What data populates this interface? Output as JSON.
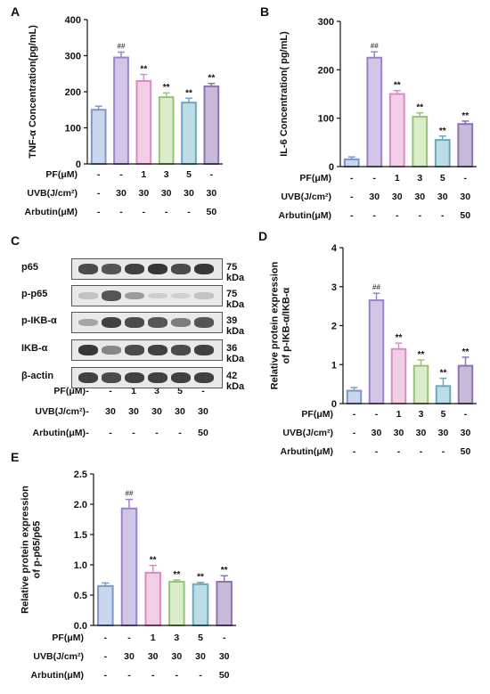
{
  "panels": [
    {
      "letter": "A",
      "ylabel": "TNF-α Concentration(pg/mL)",
      "yticks": [
        0,
        100,
        200,
        300,
        400
      ],
      "ylim": [
        0,
        400
      ],
      "colors": [
        "#c9d6ee",
        "#d2c6e8",
        "#f2cde6",
        "#dbecc9",
        "#bcdde6",
        "#c7bad8"
      ],
      "edges": [
        "#7e97c7",
        "#9a83c6",
        "#d98bc2",
        "#98c27a",
        "#6aa9be",
        "#8c74b0"
      ],
      "values": [
        150,
        295,
        230,
        185,
        170,
        215
      ],
      "errors": [
        10,
        15,
        18,
        12,
        12,
        8
      ],
      "marks": [
        "",
        "##",
        "**",
        "**",
        "**",
        "**"
      ],
      "rows": [
        {
          "label": "PF(μM)",
          "cells": [
            "-",
            "-",
            "1",
            "3",
            "5",
            "-"
          ]
        },
        {
          "label": "UVB(J/cm²)",
          "cells": [
            "-",
            "30",
            "30",
            "30",
            "30",
            "30"
          ]
        },
        {
          "label": "Arbutin(μM)",
          "cells": [
            "-",
            "-",
            "-",
            "-",
            "-",
            "50"
          ]
        }
      ]
    },
    {
      "letter": "B",
      "ylabel": "IL-6 Concentration( pg/mL)",
      "yticks": [
        0,
        100,
        200,
        300
      ],
      "ylim": [
        0,
        300
      ],
      "colors": [
        "#c9d6ee",
        "#d2c6e8",
        "#f2cde6",
        "#dbecc9",
        "#bcdde6",
        "#c7bad8"
      ],
      "edges": [
        "#7e97c7",
        "#9a83c6",
        "#d98bc2",
        "#98c27a",
        "#6aa9be",
        "#8c74b0"
      ],
      "values": [
        15,
        225,
        150,
        103,
        55,
        88
      ],
      "errors": [
        5,
        12,
        7,
        8,
        8,
        6
      ],
      "marks": [
        "",
        "##",
        "**",
        "**",
        "**",
        "**"
      ],
      "rows": [
        {
          "label": "PF(μM)",
          "cells": [
            "-",
            "-",
            "1",
            "3",
            "5",
            "-"
          ]
        },
        {
          "label": "UVB(J/cm²)",
          "cells": [
            "-",
            "30",
            "30",
            "30",
            "30",
            "30"
          ]
        },
        {
          "label": "Arbutin(μM)",
          "cells": [
            "-",
            "-",
            "-",
            "-",
            "-",
            "50"
          ]
        }
      ]
    },
    {
      "letter": "D",
      "ylabel": "Relative protein expression\nof p-IKB-α/IKB-α",
      "yticks": [
        0,
        1,
        2,
        3,
        4
      ],
      "ylim": [
        0,
        4
      ],
      "colors": [
        "#c9d6ee",
        "#d2c6e8",
        "#f2cde6",
        "#dbecc9",
        "#bcdde6",
        "#c7bad8"
      ],
      "edges": [
        "#7e97c7",
        "#9a83c6",
        "#d98bc2",
        "#98c27a",
        "#6aa9be",
        "#8c74b0"
      ],
      "values": [
        0.33,
        2.65,
        1.4,
        0.97,
        0.45,
        0.97
      ],
      "errors": [
        0.08,
        0.18,
        0.15,
        0.15,
        0.2,
        0.22
      ],
      "marks": [
        "",
        "##",
        "**",
        "**",
        "**",
        "**"
      ],
      "rows": [
        {
          "label": "PF(μM)",
          "cells": [
            "-",
            "-",
            "1",
            "3",
            "5",
            "-"
          ]
        },
        {
          "label": "UVB(J/cm²)",
          "cells": [
            "-",
            "30",
            "30",
            "30",
            "30",
            "30"
          ]
        },
        {
          "label": "Arbutin(μM)",
          "cells": [
            "-",
            "-",
            "-",
            "-",
            "-",
            "50"
          ]
        }
      ]
    },
    {
      "letter": "E",
      "ylabel": "Relative protein expression\nof p-p65/p65",
      "yticks": [
        0.0,
        0.5,
        1.0,
        1.5,
        2.0,
        2.5
      ],
      "ytick_labels": [
        "0.0",
        "0.5",
        "1.0",
        "1.5",
        "2.0",
        "2.5"
      ],
      "ylim": [
        0,
        2.5
      ],
      "colors": [
        "#c9d6ee",
        "#d2c6e8",
        "#f2cde6",
        "#dbecc9",
        "#bcdde6",
        "#c7bad8"
      ],
      "edges": [
        "#7e97c7",
        "#9a83c6",
        "#d98bc2",
        "#98c27a",
        "#6aa9be",
        "#8c74b0"
      ],
      "values": [
        0.65,
        1.93,
        0.87,
        0.72,
        0.68,
        0.72
      ],
      "errors": [
        0.05,
        0.15,
        0.12,
        0.03,
        0.03,
        0.1
      ],
      "marks": [
        "",
        "##",
        "**",
        "**",
        "**",
        "**"
      ],
      "rows": [
        {
          "label": "PF(μM)",
          "cells": [
            "-",
            "-",
            "1",
            "3",
            "5",
            "-"
          ]
        },
        {
          "label": "UVB(J/cm²)",
          "cells": [
            "-",
            "30",
            "30",
            "30",
            "30",
            "30"
          ]
        },
        {
          "label": "Arbutin(μM)",
          "cells": [
            "-",
            "-",
            "-",
            "-",
            "-",
            "50"
          ]
        }
      ]
    }
  ],
  "blot": {
    "letter": "C",
    "rows": [
      {
        "protein": "p65",
        "kda": "75 kDa",
        "intensity": [
          0.75,
          0.7,
          0.8,
          0.85,
          0.75,
          0.85
        ]
      },
      {
        "protein": "p-p65",
        "kda": "75 kDa",
        "intensity": [
          0.15,
          0.7,
          0.35,
          0.1,
          0.08,
          0.15
        ]
      },
      {
        "protein": "p-IKB-α",
        "kda": "39 kDa",
        "intensity": [
          0.3,
          0.8,
          0.75,
          0.7,
          0.5,
          0.7
        ]
      },
      {
        "protein": "IKB-α",
        "kda": "36 kDa",
        "intensity": [
          0.85,
          0.45,
          0.75,
          0.8,
          0.75,
          0.8
        ]
      },
      {
        "protein": "β-actin",
        "kda": "42 kDa",
        "intensity": [
          0.8,
          0.75,
          0.8,
          0.8,
          0.8,
          0.8
        ]
      }
    ],
    "treatment_rows": [
      {
        "label": "PF(μM)",
        "cells": [
          "-",
          "-",
          "1",
          "3",
          "5",
          "-"
        ]
      },
      {
        "label": "UVB(J/cm²)",
        "cells": [
          "-",
          "30",
          "30",
          "30",
          "30",
          "30"
        ]
      },
      {
        "label": "Arbutin(μM)",
        "cells": [
          "-",
          "-",
          "-",
          "-",
          "-",
          "50"
        ]
      }
    ]
  },
  "chart_data": [
    {
      "type": "bar",
      "panel": "A",
      "ylabel": "TNF-α Concentration(pg/mL)",
      "ylim": [
        0,
        400
      ],
      "categories": [
        "1",
        "2",
        "3",
        "4",
        "5",
        "6"
      ],
      "values": [
        150,
        295,
        230,
        185,
        170,
        215
      ],
      "errors": [
        10,
        15,
        18,
        12,
        12,
        8
      ],
      "annotations": [
        "",
        "##",
        "**",
        "**",
        "**",
        "**"
      ]
    },
    {
      "type": "bar",
      "panel": "B",
      "ylabel": "IL-6 Concentration( pg/mL)",
      "ylim": [
        0,
        300
      ],
      "categories": [
        "1",
        "2",
        "3",
        "4",
        "5",
        "6"
      ],
      "values": [
        15,
        225,
        150,
        103,
        55,
        88
      ],
      "errors": [
        5,
        12,
        7,
        8,
        8,
        6
      ],
      "annotations": [
        "",
        "##",
        "**",
        "**",
        "**",
        "**"
      ]
    },
    {
      "type": "bar",
      "panel": "D",
      "ylabel": "Relative protein expression of p-IKB-α/IKB-α",
      "ylim": [
        0,
        4
      ],
      "categories": [
        "1",
        "2",
        "3",
        "4",
        "5",
        "6"
      ],
      "values": [
        0.33,
        2.65,
        1.4,
        0.97,
        0.45,
        0.97
      ],
      "errors": [
        0.08,
        0.18,
        0.15,
        0.15,
        0.2,
        0.22
      ],
      "annotations": [
        "",
        "##",
        "**",
        "**",
        "**",
        "**"
      ]
    },
    {
      "type": "bar",
      "panel": "E",
      "ylabel": "Relative protein expression of p-p65/p65",
      "ylim": [
        0,
        2.5
      ],
      "categories": [
        "1",
        "2",
        "3",
        "4",
        "5",
        "6"
      ],
      "values": [
        0.65,
        1.93,
        0.87,
        0.72,
        0.68,
        0.72
      ],
      "errors": [
        0.05,
        0.15,
        0.12,
        0.03,
        0.03,
        0.1
      ],
      "annotations": [
        "",
        "##",
        "**",
        "**",
        "**",
        "**"
      ]
    }
  ]
}
